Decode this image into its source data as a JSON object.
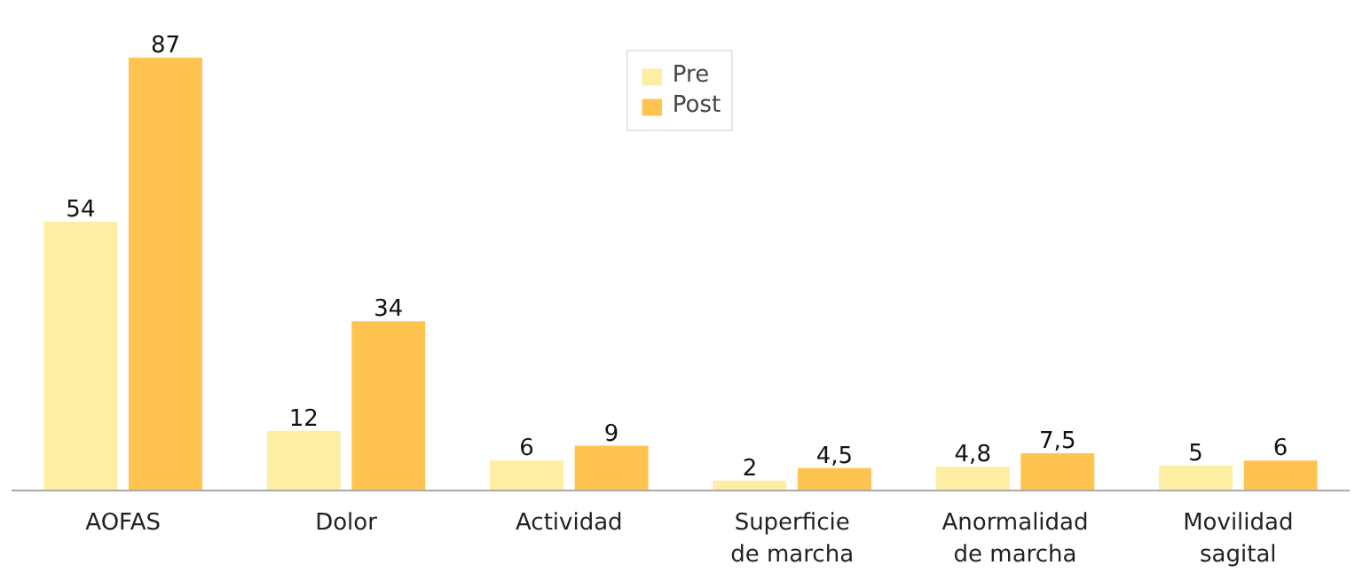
{
  "chart_data": {
    "type": "bar",
    "categories": [
      "AOFAS",
      "Dolor",
      "Actividad",
      "Superficie\nde marcha",
      "Anormalidad\nde marcha",
      "Movilidad\nsagital"
    ],
    "series": [
      {
        "name": "Pre",
        "color": "#fdeea3",
        "values": [
          54,
          12,
          6,
          2,
          4.8,
          5
        ],
        "value_labels": [
          "54",
          "12",
          "6",
          "2",
          "4,8",
          "5"
        ]
      },
      {
        "name": "Post",
        "color": "#ffc34f",
        "values": [
          87,
          34,
          9,
          4.5,
          7.5,
          6
        ],
        "value_labels": [
          "87",
          "34",
          "9",
          "4,5",
          "7,5",
          "6"
        ]
      }
    ],
    "legend": "top",
    "grid": false
  }
}
